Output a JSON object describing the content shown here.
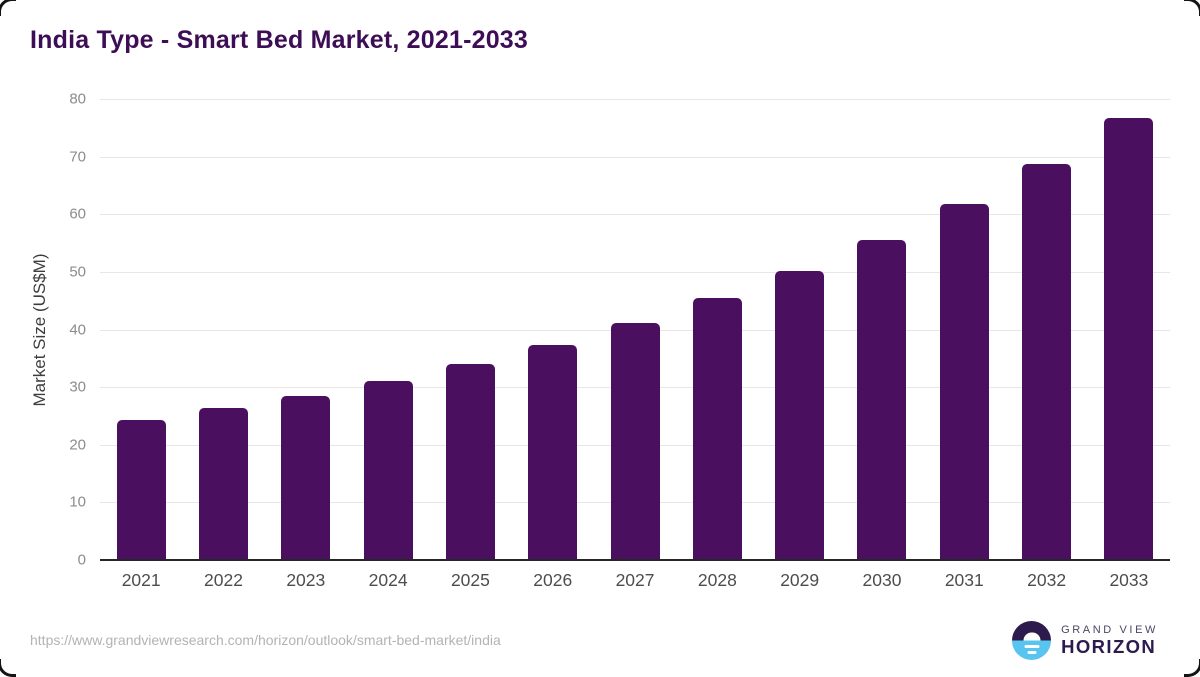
{
  "header": {
    "title": "India Type - Smart Bed Market, 2021-2033"
  },
  "chart_data": {
    "type": "bar",
    "title": "India Type - Smart Bed Market, 2021-2033",
    "categories": [
      "2021",
      "2022",
      "2023",
      "2024",
      "2025",
      "2026",
      "2027",
      "2028",
      "2029",
      "2030",
      "2031",
      "2032",
      "2033"
    ],
    "values": [
      24.3,
      26.3,
      28.4,
      31.0,
      34.0,
      37.3,
      41.2,
      45.4,
      50.2,
      55.5,
      61.7,
      68.8,
      76.7
    ],
    "xlabel": "",
    "ylabel": "Market Size (US$M)",
    "ylim": [
      0,
      80
    ],
    "yticks": [
      0,
      10,
      20,
      30,
      40,
      50,
      60,
      70,
      80
    ],
    "grid": true,
    "legend": "none",
    "bar_color": "#4a105f"
  },
  "colors": {
    "title": "#3d0e56",
    "bar": "#4a105f",
    "gridline": "#e7e7e7",
    "axis_line": "#262626",
    "y_tick": "#8c8c8c",
    "x_tick": "#4d4d4d",
    "url_text": "#b3b3b3",
    "logo_dark_purple": "#2d1b4e",
    "logo_light_blue": "#58c4f0"
  },
  "footer": {
    "source_url": "https://www.grandviewresearch.com/horizon/outlook/smart-bed-market/india",
    "logo": {
      "line1": "GRAND VIEW",
      "line2": "HORIZON"
    }
  }
}
